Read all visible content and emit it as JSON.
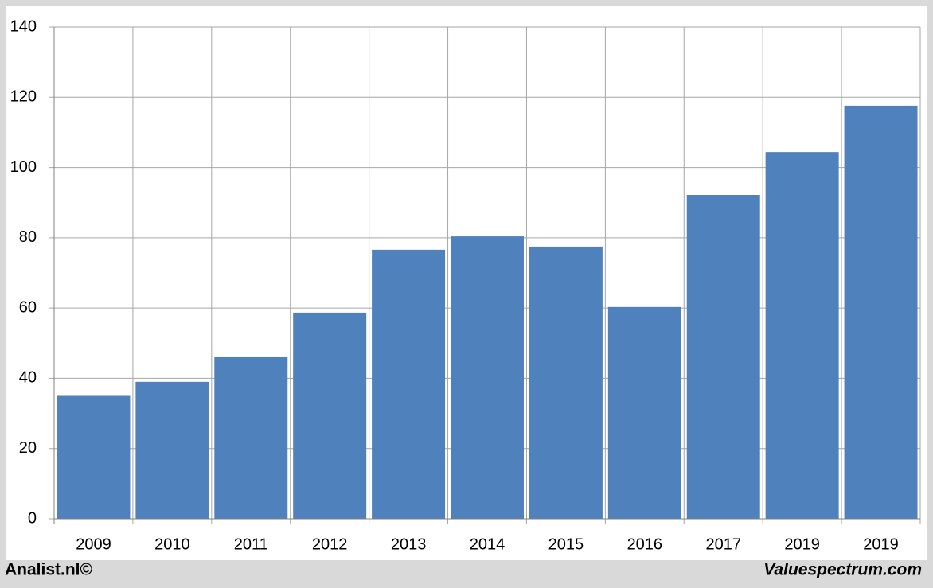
{
  "chart_data": {
    "type": "bar",
    "categories": [
      "2009",
      "2010",
      "2011",
      "2012",
      "2013",
      "2014",
      "2015",
      "2016",
      "2017",
      "2019",
      "2019"
    ],
    "values": [
      35,
      39,
      46,
      58.7,
      76.6,
      80.4,
      77.5,
      60.3,
      92.2,
      104.4,
      117.6
    ],
    "color": "#4f81bd",
    "ylim": [
      0,
      140
    ],
    "yticks": [
      0,
      20,
      40,
      60,
      80,
      100,
      120,
      140
    ],
    "grid": true
  },
  "footer": {
    "left": "Analist.nl©",
    "right": "Valuespectrum.com"
  }
}
